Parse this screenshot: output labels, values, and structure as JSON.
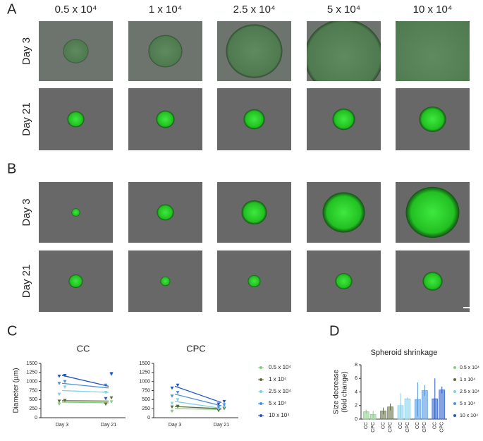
{
  "panel_labels": [
    "A",
    "B",
    "C",
    "D"
  ],
  "panel_a": {
    "columns": [
      "0.5 x 10⁴",
      "1 x 10⁴",
      "2.5 x 10⁴",
      "5 x 10⁴",
      "10 x 10⁴"
    ],
    "rows": [
      "Day 3",
      "Day 21"
    ]
  },
  "panel_b": {
    "rows": [
      "Day 3",
      "Day 21"
    ]
  },
  "chart_data": [
    {
      "type": "line",
      "title": "CC",
      "y_label": "Diameter (µm)",
      "categories": [
        "Day 3",
        "Day 21"
      ],
      "ylim": [
        0,
        1500
      ],
      "yticks": [
        0,
        250,
        500,
        750,
        1000,
        1250,
        1500
      ],
      "series": [
        {
          "name": "0.5 x 10⁴",
          "color": "#7fcf7f",
          "values": [
            430,
            410
          ],
          "replicates": [
            [
              380,
              470
            ],
            [
              380,
              440
            ]
          ]
        },
        {
          "name": "1 x 10⁴",
          "color": "#5b6b3a",
          "values": [
            470,
            460
          ],
          "replicates": [
            [
              460,
              480
            ],
            [
              380,
              550
            ]
          ]
        },
        {
          "name": "2.5 x 10⁴",
          "color": "#7fd0e8",
          "values": [
            750,
            700
          ],
          "replicates": [
            [
              650,
              850
            ],
            [
              700,
              1200
            ]
          ]
        },
        {
          "name": "5 x 10⁴",
          "color": "#4a90d9",
          "values": [
            950,
            820
          ],
          "replicates": [
            [
              950,
              1000
            ],
            [
              900,
              1200
            ]
          ]
        },
        {
          "name": "10 x 10⁴",
          "color": "#2255c4",
          "values": [
            1170,
            870
          ],
          "replicates": [
            [
              1150,
              1170
            ],
            [
              530,
              1220
            ]
          ]
        }
      ]
    },
    {
      "type": "line",
      "title": "CPC",
      "categories": [
        "Day 3",
        "Day 21"
      ],
      "ylim": [
        0,
        1500
      ],
      "yticks": [
        0,
        250,
        500,
        750,
        1000,
        1250,
        1500
      ],
      "series": [
        {
          "name": "0.5 x 10⁴",
          "color": "#7fcf7f",
          "values": [
            250,
            230
          ],
          "replicates": [
            [
              180,
              300
            ],
            [
              210,
              250
            ]
          ]
        },
        {
          "name": "1 x 10⁴",
          "color": "#5b6b3a",
          "values": [
            310,
            250
          ],
          "replicates": [
            [
              300,
              320
            ],
            [
              200,
              260
            ]
          ]
        },
        {
          "name": "2.5 x 10⁴",
          "color": "#7fd0e8",
          "values": [
            450,
            260
          ],
          "replicates": [
            [
              400,
              500
            ],
            [
              250,
              300
            ]
          ]
        },
        {
          "name": "5 x 10⁴",
          "color": "#4a90d9",
          "values": [
            650,
            330
          ],
          "replicates": [
            [
              600,
              700
            ],
            [
              300,
              360
            ]
          ]
        },
        {
          "name": "10 x 10⁴",
          "color": "#2255c4",
          "values": [
            870,
            420
          ],
          "replicates": [
            [
              820,
              900
            ],
            [
              380,
              450
            ]
          ]
        }
      ]
    },
    {
      "type": "bar",
      "title": "Spheroid shrinkage",
      "y_label": [
        "Size decrease",
        "(fold change)"
      ],
      "categories": [
        "CC",
        "CPC"
      ],
      "ylim": [
        0,
        8
      ],
      "yticks": [
        0,
        2,
        4,
        6,
        8
      ],
      "series": [
        {
          "name": "0.5 x 10⁴",
          "color": "#7fcf7f",
          "values": [
            1.1,
            0.7
          ],
          "errors": [
            0.3,
            0.5
          ]
        },
        {
          "name": "1 x 10⁴",
          "color": "#5b6b3a",
          "values": [
            1.2,
            1.8
          ],
          "errors": [
            0.5,
            0.5
          ]
        },
        {
          "name": "2.5 x 10⁴",
          "color": "#7fd0e8",
          "values": [
            2.0,
            3.0
          ],
          "errors": [
            1.8,
            0.2
          ]
        },
        {
          "name": "5 x 10⁴",
          "color": "#4a90d9",
          "values": [
            2.9,
            4.2
          ],
          "errors": [
            2.5,
            0.8
          ]
        },
        {
          "name": "10 x 10⁴",
          "color": "#2255c4",
          "values": [
            3.0,
            4.3
          ],
          "errors": [
            3.0,
            0.5
          ]
        }
      ]
    }
  ]
}
